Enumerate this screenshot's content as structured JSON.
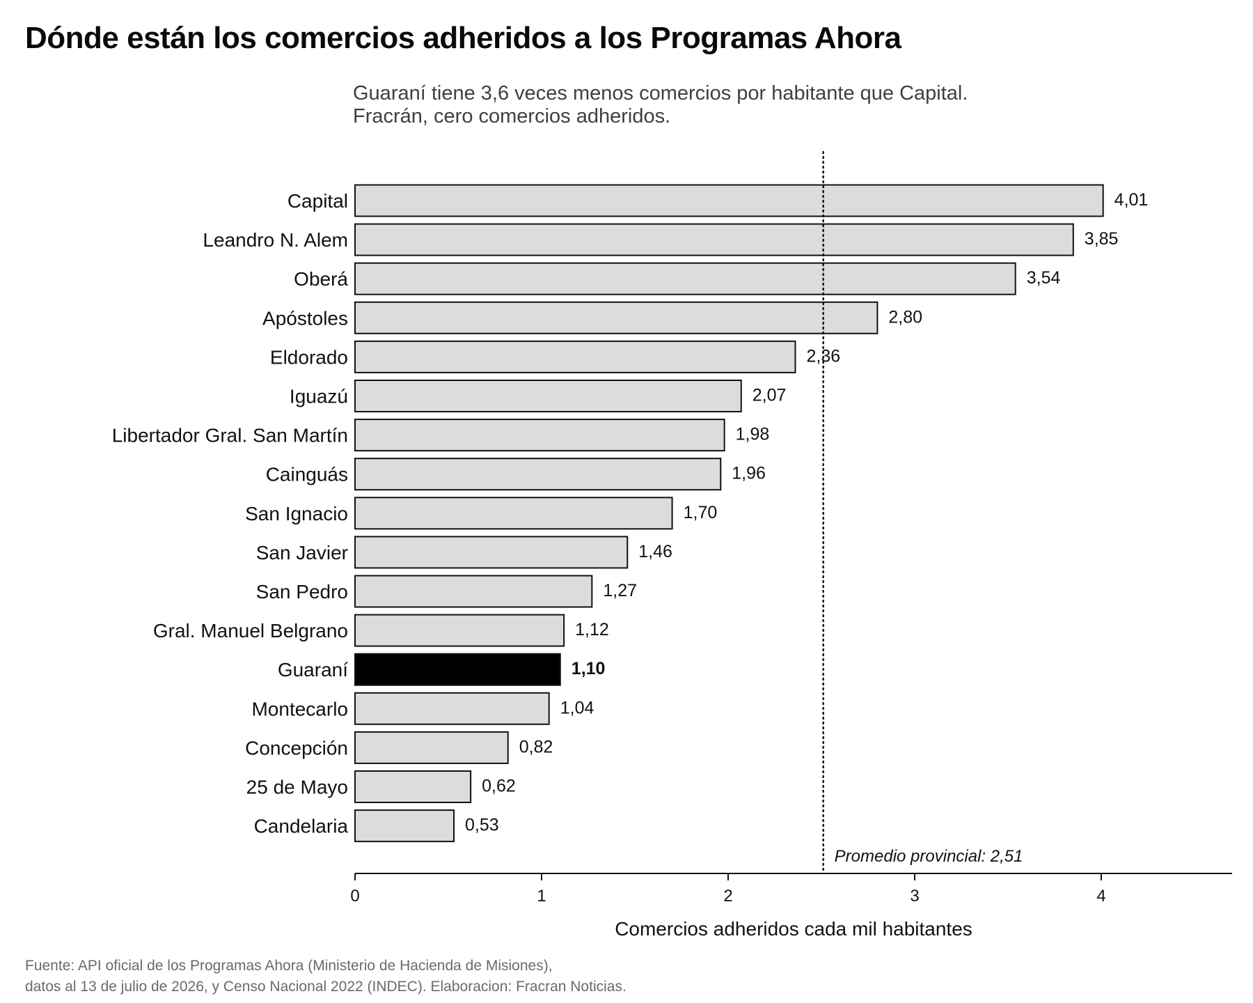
{
  "chart_data": {
    "type": "bar",
    "orientation": "horizontal",
    "title": "Dónde están los comercios adheridos a los Programas Ahora",
    "subtitle_lines": [
      "Guaraní tiene 3,6 veces menos comercios por habitante que Capital.",
      "Fracrán, cero comercios adheridos."
    ],
    "categories": [
      "Capital",
      "Leandro N. Alem",
      "Oberá",
      "Apóstoles",
      "Eldorado",
      "Iguazú",
      "Libertador Gral. San Martín",
      "Cainguás",
      "San Ignacio",
      "San Javier",
      "San Pedro",
      "Gral. Manuel Belgrano",
      "Guaraní",
      "Montecarlo",
      "Concepción",
      "25 de Mayo",
      "Candelaria"
    ],
    "values": [
      4.01,
      3.85,
      3.54,
      2.8,
      2.36,
      2.07,
      1.98,
      1.96,
      1.7,
      1.46,
      1.27,
      1.12,
      1.1,
      1.04,
      0.82,
      0.62,
      0.53
    ],
    "value_labels": [
      "4,01",
      "3,85",
      "3,54",
      "2,80",
      "2,36",
      "2,07",
      "1,98",
      "1,96",
      "1,70",
      "1,46",
      "1,27",
      "1,12",
      "1,10",
      "1,04",
      "0,82",
      "0,62",
      "0,53"
    ],
    "highlight_category": "Guaraní",
    "xlabel": "Comercios adheridos cada mil habitantes",
    "ylabel": "",
    "xlim": [
      0,
      4.7
    ],
    "x_ticks": [
      0,
      1,
      2,
      3,
      4
    ],
    "x_tick_labels": [
      "0",
      "1",
      "2",
      "3",
      "4"
    ],
    "reference_line": {
      "value": 2.51,
      "label": "Promedio provincial: 2,51",
      "style": "dotted"
    },
    "grid": false,
    "legend": "none",
    "colors": {
      "bar": "#dcdcdc",
      "bar_highlight": "#000000",
      "bar_outline": "#111111",
      "text": "#111111"
    }
  },
  "footer": {
    "lines": [
      "Fuente: API oficial de los Programas Ahora (Ministerio de Hacienda de Misiones),",
      "datos al 13 de julio de 2026, y Censo Nacional 2022 (INDEC). Elaboracion: Fracran Noticias."
    ]
  }
}
